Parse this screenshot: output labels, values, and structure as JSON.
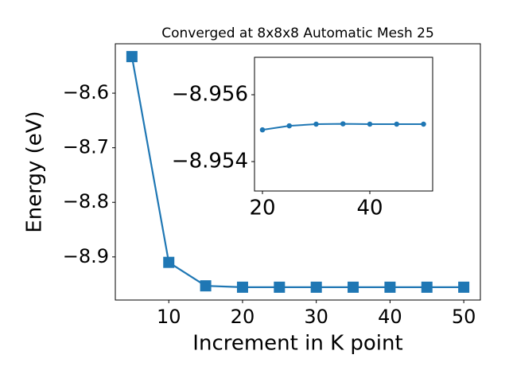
{
  "chart_data": [
    {
      "type": "line",
      "title": "Converged at 8x8x8 Automatic Mesh 25",
      "x_label": "Increment in K point",
      "y_label": "Energy (eV)",
      "x": [
        5,
        10,
        15,
        20,
        25,
        30,
        35,
        40,
        45,
        50
      ],
      "series": [
        {
          "color": "#1f77b4",
          "marker": "square",
          "values": [
            -8.533,
            -8.91,
            -8.953,
            -8.9555,
            -8.9555,
            -8.9555,
            -8.9555,
            -8.9555,
            -8.9555,
            -8.9555
          ]
        }
      ],
      "xlim": [
        2.75,
        52.25
      ],
      "ylim": [
        -8.979,
        -8.5095
      ],
      "xticks": [
        10,
        20,
        30,
        40,
        50
      ],
      "yticks": [
        {
          "value": -8.9,
          "label": "−8.9"
        },
        {
          "value": -8.8,
          "label": "−8.8"
        },
        {
          "value": -8.7,
          "label": "−8.7"
        },
        {
          "value": -8.6,
          "label": "−8.6"
        }
      ]
    },
    {
      "type": "line",
      "x": [
        20,
        25,
        30,
        35,
        40,
        45,
        50
      ],
      "series": [
        {
          "color": "#1f77b4",
          "marker": "circle",
          "values": [
            -8.95495,
            -8.95507,
            -8.95512,
            -8.95513,
            -8.95512,
            -8.95512,
            -8.95512
          ]
        }
      ],
      "xlim": [
        18.52,
        51.7
      ],
      "ylim": [
        -8.95312,
        -8.95712
      ],
      "xticks": [
        20,
        40
      ],
      "yticks": [
        {
          "value": -8.954,
          "label": "−8.954"
        },
        {
          "value": -8.956,
          "label": "−8.956"
        }
      ]
    }
  ]
}
